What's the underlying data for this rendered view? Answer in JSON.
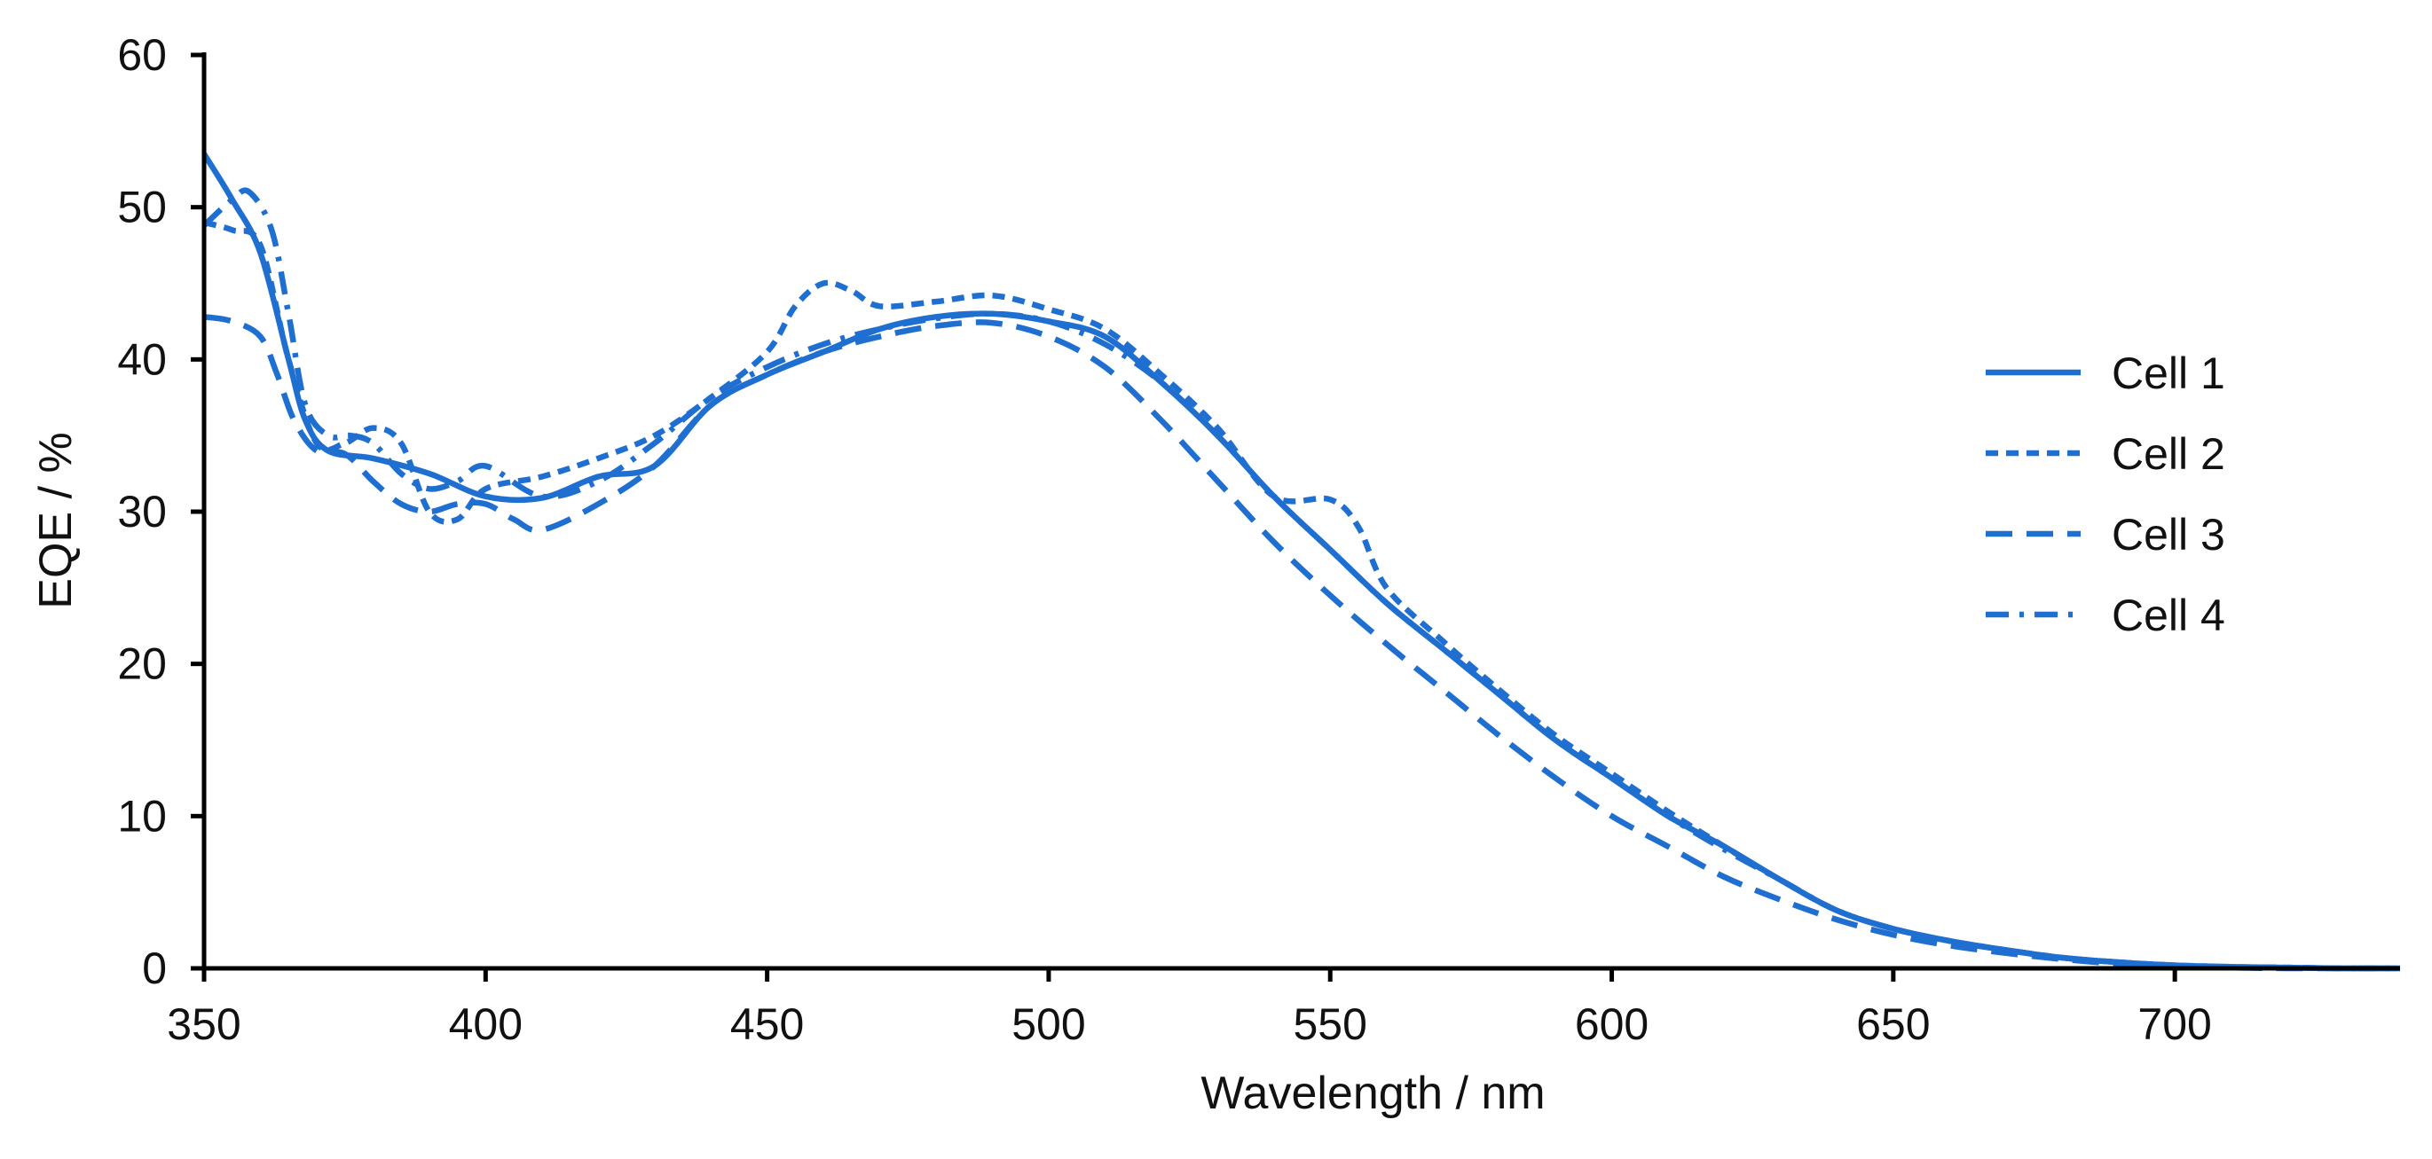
{
  "chart_data": {
    "type": "line",
    "title": "",
    "xlabel": "Wavelength / nm",
    "ylabel": "EQE / %",
    "xlim": [
      350,
      740
    ],
    "ylim": [
      0,
      60
    ],
    "xticks": [
      350,
      400,
      450,
      500,
      550,
      600,
      650,
      700
    ],
    "yticks": [
      0,
      10,
      20,
      30,
      40,
      50,
      60
    ],
    "grid": false,
    "legend_position": "right",
    "line_color": "#1f6fd1",
    "series": [
      {
        "name": "Cell 1",
        "style": "solid",
        "x": [
          350,
          355,
          360,
          365,
          368,
          372,
          380,
          390,
          400,
          410,
          420,
          430,
          440,
          450,
          460,
          470,
          480,
          490,
          500,
          510,
          520,
          530,
          540,
          550,
          560,
          570,
          580,
          590,
          600,
          610,
          620,
          630,
          640,
          650,
          660,
          670,
          680,
          690,
          700,
          710,
          720,
          730,
          740
        ],
        "y": [
          53.5,
          50.5,
          47,
          40,
          36,
          34,
          33.5,
          32.5,
          31,
          30.9,
          32.3,
          33,
          37,
          39,
          40.5,
          42,
          42.8,
          43,
          42.5,
          41.5,
          38.5,
          35,
          31,
          27.5,
          24,
          21,
          18,
          15,
          12.5,
          10,
          8,
          5.8,
          3.8,
          2.6,
          1.8,
          1.2,
          0.7,
          0.4,
          0.2,
          0.1,
          0.05,
          0,
          0
        ]
      },
      {
        "name": "Cell 2",
        "style": "short-dash",
        "x": [
          350,
          355,
          360,
          365,
          370,
          375,
          380,
          385,
          390,
          395,
          400,
          410,
          420,
          430,
          440,
          450,
          455,
          460,
          465,
          470,
          480,
          490,
          500,
          510,
          520,
          530,
          540,
          550,
          555,
          560,
          570,
          580,
          590,
          600,
          610,
          620,
          630,
          640,
          650,
          660,
          670,
          680,
          690,
          700,
          710,
          720,
          730,
          740
        ],
        "y": [
          49,
          48.5,
          47.5,
          40,
          34.5,
          34.5,
          35.5,
          34.5,
          30,
          29.5,
          31.5,
          32.3,
          33.5,
          35,
          37.5,
          40.5,
          43.5,
          45,
          44.5,
          43.5,
          43.8,
          44.2,
          43.3,
          42,
          39,
          35.5,
          31,
          30.8,
          29,
          25,
          21.5,
          18.3,
          15.3,
          12.8,
          10.3,
          8,
          5.8,
          3.8,
          2.6,
          1.8,
          1.2,
          0.7,
          0.4,
          0.2,
          0.1,
          0.05,
          0,
          0
        ]
      },
      {
        "name": "Cell 3",
        "style": "long-dash",
        "x": [
          350,
          355,
          360,
          363,
          366,
          370,
          375,
          380,
          385,
          390,
          395,
          400,
          405,
          410,
          420,
          430,
          440,
          450,
          460,
          470,
          480,
          490,
          500,
          510,
          520,
          530,
          540,
          550,
          560,
          570,
          580,
          590,
          600,
          610,
          620,
          630,
          640,
          650,
          660,
          670,
          680,
          690,
          700,
          710,
          720,
          730,
          740
        ],
        "y": [
          42.8,
          42.5,
          41.5,
          39,
          36,
          34,
          33.8,
          32,
          30.5,
          30,
          30.5,
          30.5,
          29.5,
          28.8,
          30.5,
          33,
          37,
          39,
          40.5,
          41.5,
          42.2,
          42.4,
          41.5,
          39.5,
          36,
          32,
          28,
          24.5,
          21.3,
          18.3,
          15.3,
          12.5,
          10,
          8,
          6,
          4.5,
          3.2,
          2.2,
          1.5,
          1,
          0.6,
          0.3,
          0.15,
          0.05,
          0,
          0,
          0
        ]
      },
      {
        "name": "Cell 4",
        "style": "dash-dot",
        "x": [
          350,
          355,
          358,
          362,
          365,
          368,
          372,
          376,
          380,
          385,
          390,
          395,
          400,
          410,
          420,
          430,
          440,
          450,
          460,
          470,
          480,
          490,
          500,
          510,
          520,
          530,
          540,
          550,
          560,
          570,
          580,
          590,
          600,
          610,
          620,
          630,
          640,
          650,
          660,
          670,
          680,
          690,
          700,
          710,
          720,
          730,
          740
        ],
        "y": [
          48.8,
          50.5,
          51,
          48.5,
          43,
          37,
          35,
          35,
          34.5,
          32.5,
          31.5,
          32,
          33,
          31,
          32,
          34.5,
          37.5,
          39.5,
          41,
          42,
          42.7,
          43,
          42.5,
          41,
          38.5,
          35,
          31,
          27.5,
          24,
          21,
          18,
          15,
          12.5,
          10,
          7.8,
          5.8,
          3.8,
          2.6,
          1.8,
          1.2,
          0.7,
          0.4,
          0.2,
          0.1,
          0.05,
          0,
          0
        ]
      }
    ]
  }
}
